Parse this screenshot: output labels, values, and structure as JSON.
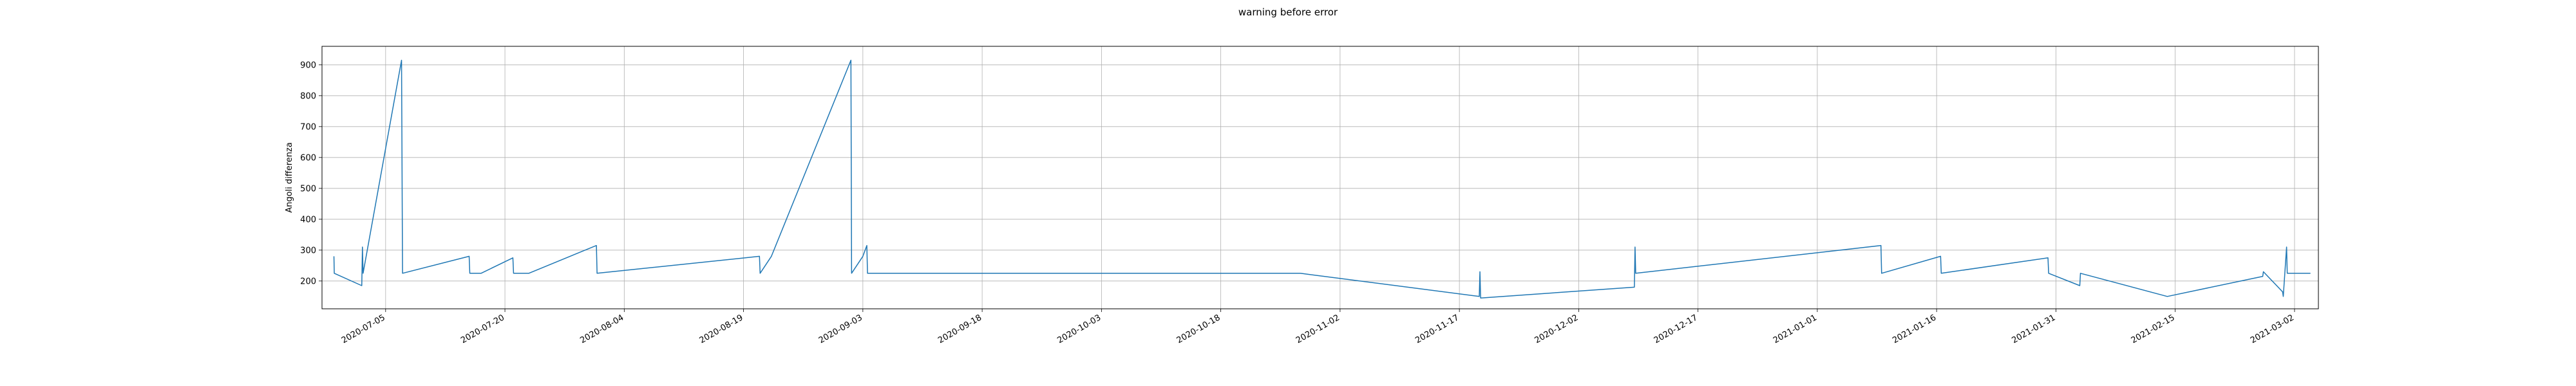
{
  "chart_data": {
    "type": "line",
    "title": "warning before error",
    "xlabel": "",
    "ylabel": "Angoli differenza",
    "grid": true,
    "xlim": [
      "2020-06-27",
      "2021-03-05"
    ],
    "ylim": [
      110,
      960
    ],
    "y_ticks": [
      200,
      300,
      400,
      500,
      600,
      700,
      800,
      900
    ],
    "x_ticks": [
      "2020-07-05",
      "2020-07-20",
      "2020-08-04",
      "2020-08-19",
      "2020-09-03",
      "2020-09-18",
      "2020-10-03",
      "2020-10-18",
      "2020-11-02",
      "2020-11-17",
      "2020-12-02",
      "2020-12-17",
      "2021-01-01",
      "2021-01-16",
      "2021-01-31",
      "2021-02-15",
      "2021-03-02"
    ],
    "series": [
      {
        "name": "",
        "color": "#1f77b4",
        "points": [
          [
            "2020-06-28 12:00",
            280
          ],
          [
            "2020-06-28 13:00",
            225
          ],
          [
            "2020-07-02 00:00",
            185
          ],
          [
            "2020-07-02 02:00",
            310
          ],
          [
            "2020-07-02 04:00",
            225
          ],
          [
            "2020-07-07 00:00",
            915
          ],
          [
            "2020-07-07 03:00",
            225
          ],
          [
            "2020-07-15 12:00",
            280
          ],
          [
            "2020-07-15 14:00",
            225
          ],
          [
            "2020-07-17 00:00",
            225
          ],
          [
            "2020-07-21 00:00",
            275
          ],
          [
            "2020-07-21 02:00",
            225
          ],
          [
            "2020-07-23 00:00",
            225
          ],
          [
            "2020-07-31 12:00",
            315
          ],
          [
            "2020-07-31 14:00",
            225
          ],
          [
            "2020-08-21 00:00",
            280
          ],
          [
            "2020-08-21 02:00",
            225
          ],
          [
            "2020-08-22 12:00",
            280
          ],
          [
            "2020-09-01 12:00",
            915
          ],
          [
            "2020-09-01 14:00",
            225
          ],
          [
            "2020-09-03 00:00",
            280
          ],
          [
            "2020-09-03 12:00",
            315
          ],
          [
            "2020-09-03 14:00",
            225
          ],
          [
            "2020-10-28 00:00",
            225
          ],
          [
            "2020-11-19 12:00",
            150
          ],
          [
            "2020-11-19 14:00",
            230
          ],
          [
            "2020-11-19 16:00",
            145
          ],
          [
            "2020-12-09 00:00",
            180
          ],
          [
            "2020-12-09 02:00",
            310
          ],
          [
            "2020-12-09 04:00",
            225
          ],
          [
            "2021-01-09 00:00",
            315
          ],
          [
            "2021-01-09 02:00",
            225
          ],
          [
            "2021-01-16 12:00",
            280
          ],
          [
            "2021-01-16 14:00",
            225
          ],
          [
            "2021-01-30 00:00",
            275
          ],
          [
            "2021-01-30 02:00",
            225
          ],
          [
            "2021-02-03 00:00",
            185
          ],
          [
            "2021-02-03 02:00",
            225
          ],
          [
            "2021-02-14 00:00",
            150
          ],
          [
            "2021-02-26 00:00",
            215
          ],
          [
            "2021-02-26 02:00",
            230
          ],
          [
            "2021-02-28 12:00",
            165
          ],
          [
            "2021-02-28 14:00",
            150
          ],
          [
            "2021-03-01 00:00",
            310
          ],
          [
            "2021-03-01 02:00",
            225
          ],
          [
            "2021-03-04 00:00",
            225
          ]
        ]
      }
    ]
  }
}
